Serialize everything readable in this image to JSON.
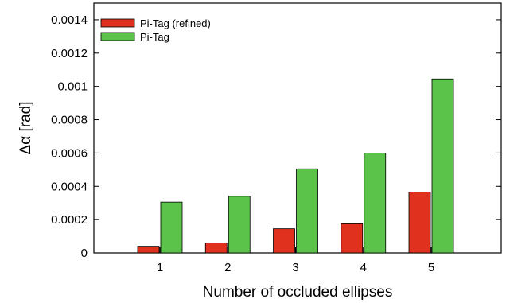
{
  "chart_data": {
    "type": "bar",
    "title": "",
    "xlabel": "Number of occluded ellipses",
    "ylabel": "Δα [rad]",
    "categories": [
      "1",
      "2",
      "3",
      "4",
      "5"
    ],
    "series": [
      {
        "name": "Pi-Tag (refined)",
        "color": "#e0301e",
        "values": [
          4e-05,
          6e-05,
          0.000145,
          0.000175,
          0.000365
        ]
      },
      {
        "name": "Pi-Tag",
        "color": "#5cc34a",
        "values": [
          0.000305,
          0.00034,
          0.000505,
          0.0006,
          0.001045
        ]
      }
    ],
    "ylim": [
      0,
      0.0015
    ],
    "yticks": [
      "0",
      "0.0002",
      "0.0004",
      "0.0006",
      "0.0008",
      "0.001",
      "0.0012",
      "0.0014"
    ],
    "ytick_values": [
      0,
      0.0002,
      0.0004,
      0.0006,
      0.0008,
      0.001,
      0.0012,
      0.0014
    ],
    "grid": false,
    "legend_position": "top-left"
  }
}
